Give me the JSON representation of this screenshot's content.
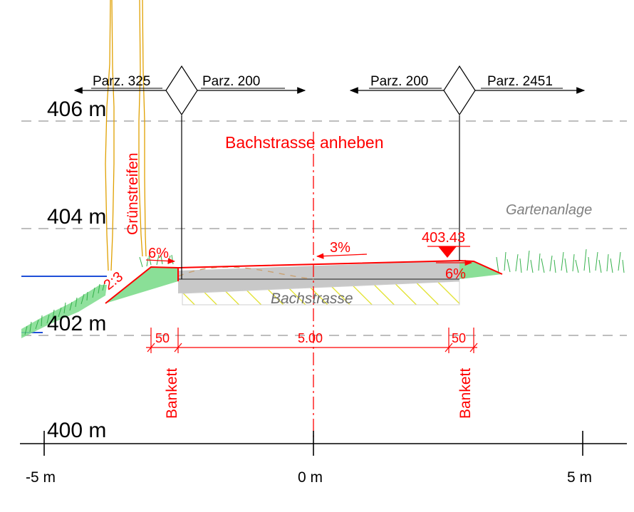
{
  "levels": [
    "406 m",
    "404 m",
    "402 m",
    "400 m"
  ],
  "axis": {
    "left": "-5 m",
    "center": "0 m",
    "right": "5 m"
  },
  "parcels": {
    "left_a": "Parz. 325",
    "left_b": "Parz. 200",
    "right_a": "Parz. 200",
    "right_b": "Parz. 2451"
  },
  "title": "Bachstrasse anheben",
  "gruenstreifen": "Grünstreifen",
  "gartenanlage": "Gartenanlage",
  "road_label": "Bachstrasse",
  "slope_center": "3%",
  "slope_left": "6%",
  "slope_right": "6%",
  "embankment": "2:3",
  "spot_height": "403.43",
  "dims": {
    "left": "50",
    "middle": "5.00",
    "right": "50"
  },
  "bankett_left": "Bankett",
  "bankett_right": "Bankett",
  "colors": {
    "annotation": "#ff0000",
    "grass": "#7ddc8c",
    "road": "#c8c8c8",
    "water": "#1f4fd8",
    "hatch": "#e0e020"
  }
}
